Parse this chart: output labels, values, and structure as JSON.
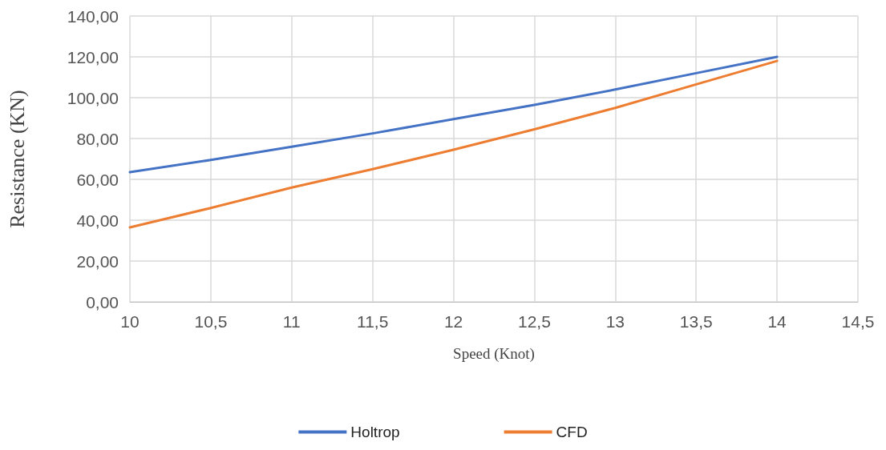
{
  "chart_data": {
    "type": "line",
    "xlabel": "Speed (Knot)",
    "ylabel": "Resistance (KN)",
    "x": [
      10,
      10.5,
      11,
      11.5,
      12,
      12.5,
      13,
      13.5,
      14
    ],
    "series": [
      {
        "name": "Holtrop",
        "color": "#4472c4",
        "values": [
          63.5,
          69.5,
          76,
          82.5,
          89.5,
          96.5,
          104,
          112,
          120
        ]
      },
      {
        "name": "CFD",
        "color": "#ed7d31",
        "values": [
          36.5,
          46,
          56,
          65,
          74.5,
          84.5,
          95,
          106.5,
          118
        ]
      }
    ],
    "xlim": [
      10,
      14.5
    ],
    "xticks": [
      10,
      {
        "value": 10.5,
        "label": "10,5"
      },
      11,
      {
        "value": 11.5,
        "label": "11,5"
      },
      12,
      {
        "value": 12.5,
        "label": "12,5"
      },
      13,
      {
        "value": 13.5,
        "label": "13,5"
      },
      14,
      {
        "value": 14.5,
        "label": "14,5"
      }
    ],
    "ylim": [
      0,
      140
    ],
    "yticks": [
      {
        "value": 0,
        "label": "0,00"
      },
      {
        "value": 20,
        "label": "20,00"
      },
      {
        "value": 40,
        "label": "40,00"
      },
      {
        "value": 60,
        "label": "60,00"
      },
      {
        "value": 80,
        "label": "80,00"
      },
      {
        "value": 100,
        "label": "100,00"
      },
      {
        "value": 120,
        "label": "120,00"
      },
      {
        "value": 140,
        "label": "140,00"
      }
    ],
    "grid": true,
    "legend": "bottom",
    "marker": "none",
    "line_style": "solid"
  }
}
